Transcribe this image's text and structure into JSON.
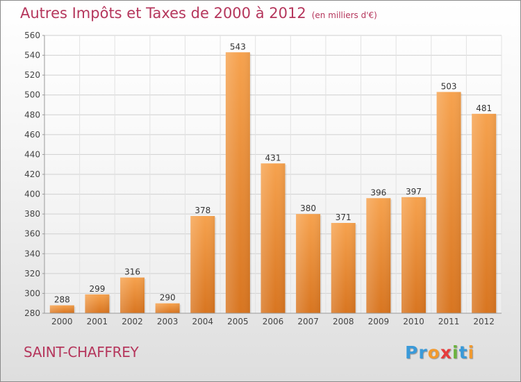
{
  "chart_data": {
    "type": "bar",
    "title": "Autres Impôts et Taxes de 2000 à 2012",
    "subtitle": "(en milliers d'€)",
    "categories": [
      "2000",
      "2001",
      "2002",
      "2003",
      "2004",
      "2005",
      "2006",
      "2007",
      "2008",
      "2009",
      "2010",
      "2011",
      "2012"
    ],
    "values": [
      288,
      299,
      316,
      290,
      378,
      543,
      431,
      380,
      371,
      396,
      397,
      503,
      481
    ],
    "ylim": [
      280,
      560
    ],
    "yticks": [
      280,
      300,
      320,
      340,
      360,
      380,
      400,
      420,
      440,
      460,
      480,
      500,
      520,
      540,
      560
    ],
    "xlabel": "",
    "ylabel": "",
    "grid": true,
    "bar_color": "#f0963c"
  },
  "commune": "SAINT-CHAFFREY",
  "brand": {
    "text": "Proxiti",
    "letters": [
      {
        "ch": "P",
        "color": "#3a9ad9"
      },
      {
        "ch": "r",
        "color": "#3a9ad9"
      },
      {
        "ch": "o",
        "color": "#f29a2e"
      },
      {
        "ch": "x",
        "color": "#e63c3c"
      },
      {
        "ch": "i",
        "color": "#6cb33f"
      },
      {
        "ch": "t",
        "color": "#3a9ad9"
      },
      {
        "ch": "i",
        "color": "#f29a2e"
      }
    ]
  }
}
